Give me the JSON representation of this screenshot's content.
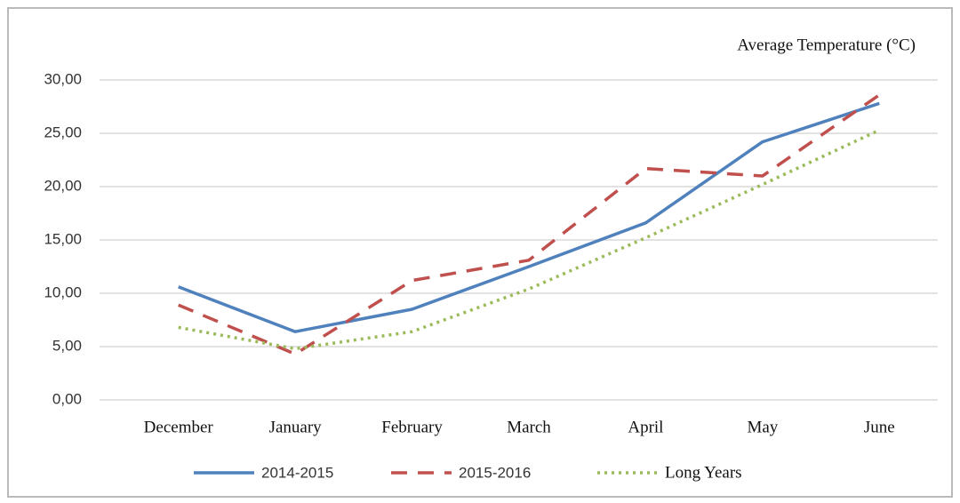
{
  "chart_data": {
    "type": "line",
    "title": "Average Temperature (°C)",
    "categories": [
      "December",
      "January",
      "February",
      "March",
      "April",
      "May",
      "June"
    ],
    "series": [
      {
        "name": "2014-2015",
        "color": "#4f81bd",
        "style": "solid",
        "values": [
          10.6,
          6.4,
          8.5,
          12.5,
          16.6,
          24.2,
          27.8
        ]
      },
      {
        "name": "2015-2016",
        "color": "#c0504d",
        "style": "dashed",
        "values": [
          8.9,
          4.3,
          11.2,
          13.1,
          21.7,
          21.0,
          28.6
        ]
      },
      {
        "name": "Long Years",
        "color": "#9bbb59",
        "style": "dotted",
        "values": [
          6.8,
          4.8,
          6.4,
          10.4,
          15.2,
          20.2,
          25.3
        ]
      }
    ],
    "ylim": [
      0,
      30
    ],
    "yticks": [
      {
        "value": 0,
        "label": "0,00"
      },
      {
        "value": 5,
        "label": "5,00"
      },
      {
        "value": 10,
        "label": "10,00"
      },
      {
        "value": 15,
        "label": "15,00"
      },
      {
        "value": 20,
        "label": "20,00"
      },
      {
        "value": 25,
        "label": "25,00"
      },
      {
        "value": 30,
        "label": "30,00"
      }
    ],
    "grid": true,
    "legend": "bottom"
  }
}
